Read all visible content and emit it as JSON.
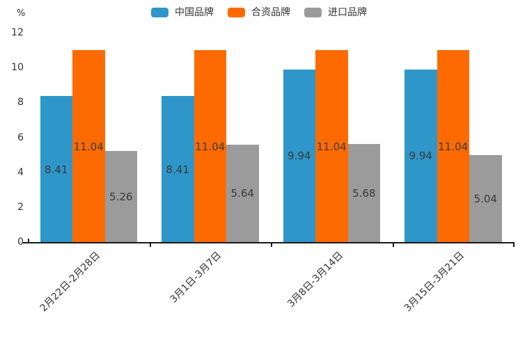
{
  "chart_data": {
    "type": "bar",
    "title": "",
    "categories": [
      "2月22日-2月28日",
      "3月1日-3月7日",
      "3月8日-3月14日",
      "3月15日-3月21日"
    ],
    "series": [
      {
        "name": "中国品牌",
        "color": "#2e96c8",
        "values": [
          8.41,
          8.41,
          9.94,
          9.94
        ]
      },
      {
        "name": "合资品牌",
        "color": "#fd6a02",
        "values": [
          11.04,
          11.04,
          11.04,
          11.04
        ]
      },
      {
        "name": "进口品牌",
        "color": "#9b9b9b",
        "values": [
          5.26,
          5.64,
          5.68,
          5.04
        ]
      }
    ],
    "y_axis": {
      "unit": "%",
      "min": 0,
      "max": 12,
      "tick_step": 2,
      "ticks": [
        0,
        2,
        4,
        6,
        8,
        10,
        12
      ]
    },
    "x_axis": {
      "label_rotation_deg": -45
    },
    "legend_position": "top",
    "grid": false,
    "value_labels": {
      "position": "inside-center",
      "decimals": 2,
      "color": "#3a3a3a"
    },
    "styles": {
      "axis_color": "#181818",
      "tick_text_color": "#333333",
      "background": "#ffffff"
    }
  }
}
